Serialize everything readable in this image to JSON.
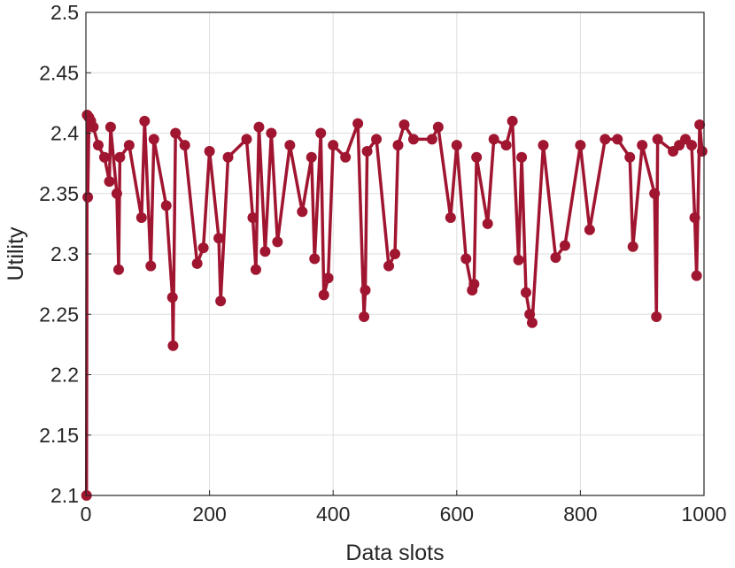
{
  "chart_data": {
    "type": "line",
    "title": "",
    "xlabel": "Data slots",
    "ylabel": "Utility",
    "xlim": [
      0,
      1000
    ],
    "ylim": [
      2.1,
      2.5
    ],
    "x_ticks": [
      "0",
      "200",
      "400",
      "600",
      "800",
      "1000"
    ],
    "y_ticks": [
      "2.1",
      "2.15",
      "2.2",
      "2.25",
      "2.3",
      "2.35",
      "2.4",
      "2.45",
      "2.5"
    ],
    "grid": true,
    "legend": "none",
    "series": [
      {
        "color": "#a01530",
        "marker": "circle",
        "x": [
          1,
          2,
          3,
          5,
          8,
          12,
          20,
          30,
          38,
          40,
          50,
          53,
          55,
          70,
          90,
          95,
          105,
          110,
          130,
          140,
          141,
          145,
          160,
          180,
          190,
          200,
          215,
          218,
          230,
          260,
          270,
          275,
          280,
          290,
          300,
          310,
          330,
          350,
          365,
          370,
          380,
          385,
          392,
          400,
          420,
          440,
          450,
          452,
          455,
          470,
          490,
          500,
          505,
          515,
          530,
          560,
          570,
          590,
          600,
          615,
          625,
          628,
          632,
          650,
          660,
          680,
          690,
          700,
          705,
          712,
          718,
          722,
          740,
          760,
          775,
          800,
          815,
          840,
          860,
          880,
          885,
          900,
          920,
          923,
          925,
          950,
          960,
          970,
          980,
          985,
          988,
          993,
          997
        ],
        "values": [
          2.1,
          2.415,
          2.347,
          2.413,
          2.41,
          2.405,
          2.39,
          2.38,
          2.36,
          2.405,
          2.35,
          2.287,
          2.38,
          2.39,
          2.33,
          2.41,
          2.29,
          2.395,
          2.34,
          2.264,
          2.224,
          2.4,
          2.39,
          2.292,
          2.305,
          2.385,
          2.313,
          2.261,
          2.38,
          2.395,
          2.33,
          2.287,
          2.405,
          2.302,
          2.4,
          2.31,
          2.39,
          2.335,
          2.38,
          2.296,
          2.4,
          2.266,
          2.28,
          2.39,
          2.38,
          2.408,
          2.248,
          2.27,
          2.385,
          2.395,
          2.29,
          2.3,
          2.39,
          2.407,
          2.395,
          2.395,
          2.405,
          2.33,
          2.39,
          2.296,
          2.27,
          2.275,
          2.38,
          2.325,
          2.395,
          2.39,
          2.41,
          2.295,
          2.38,
          2.268,
          2.25,
          2.243,
          2.39,
          2.297,
          2.307,
          2.39,
          2.32,
          2.395,
          2.395,
          2.38,
          2.306,
          2.39,
          2.35,
          2.248,
          2.395,
          2.385,
          2.39,
          2.395,
          2.39,
          2.33,
          2.282,
          2.407,
          2.385
        ]
      }
    ]
  }
}
